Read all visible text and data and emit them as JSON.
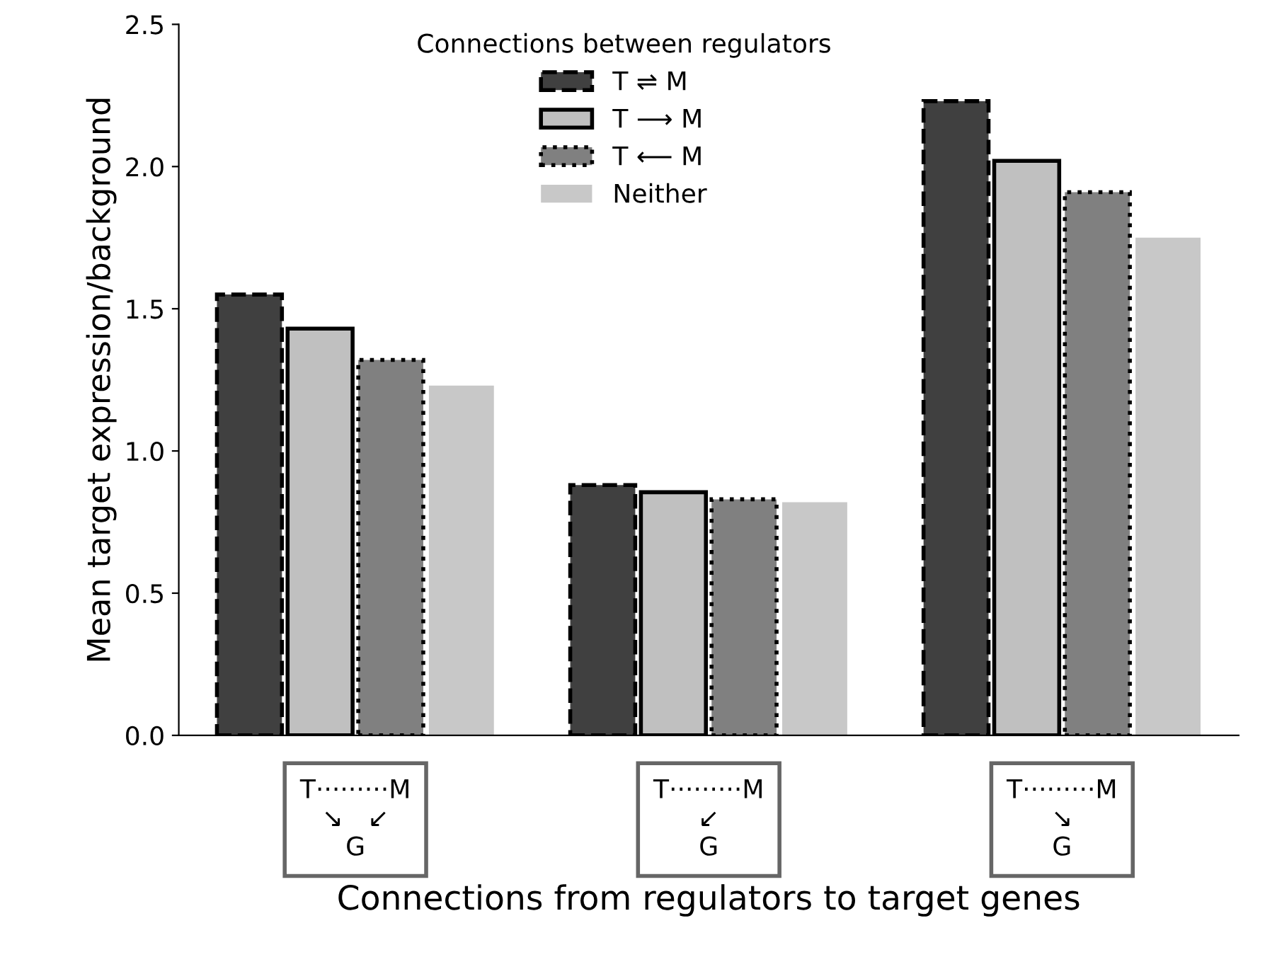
{
  "chart_data": {
    "type": "bar",
    "xlabel": "Connections from regulators to target genes",
    "ylabel": "Mean target expression/background",
    "categories": [
      "T·········M\n↘   ↙\nG",
      "T·········M\n↙\nG",
      "T·········M\n↘\nG"
    ],
    "series": [
      {
        "name": "T ⇌ M",
        "color": "#404040",
        "line_style": "dashed",
        "values": [
          1.55,
          0.88,
          2.23
        ]
      },
      {
        "name": "T ⟶ M",
        "color": "#c0c0c0",
        "line_style": "solid",
        "values": [
          1.43,
          0.855,
          2.02
        ]
      },
      {
        "name": "T ⟵ M",
        "color": "#808080",
        "line_style": "dotted",
        "values": [
          1.32,
          0.83,
          1.91
        ]
      },
      {
        "name": "Neither",
        "color": "#c8c8c8",
        "values": [
          1.23,
          0.82,
          1.75
        ]
      }
    ],
    "legend_title": "Connections between regulators",
    "legend": "top",
    "ylim": [
      0,
      2.5
    ],
    "yticks": [
      {
        "value": 0,
        "label": "0.0"
      },
      {
        "value": 0.5,
        "label": "0.5"
      },
      {
        "value": 1,
        "label": "1.0"
      },
      {
        "value": 1.5,
        "label": "1.5"
      },
      {
        "value": 2,
        "label": "2.0"
      },
      {
        "value": 2.5,
        "label": "2.5"
      }
    ],
    "grid": false
  }
}
